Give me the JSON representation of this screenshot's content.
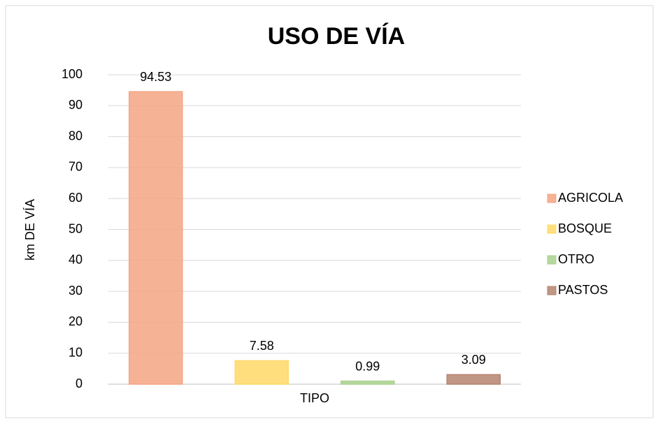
{
  "chart_data": {
    "type": "bar",
    "title": "USO DE VÍA",
    "y_label": "km DE VÍA",
    "categories": [
      "TIPO"
    ],
    "series": [
      {
        "name": "AGRICOLA",
        "color": "#f4a582",
        "values": [
          94.53
        ]
      },
      {
        "name": "BOSQUE",
        "color": "#ffd966",
        "values": [
          7.58
        ]
      },
      {
        "name": "OTRO",
        "color": "#a9d18e",
        "values": [
          0.99
        ]
      },
      {
        "name": "PASTOS",
        "color": "#b5846e",
        "values": [
          3.09
        ]
      }
    ],
    "ylim": [
      0,
      100
    ],
    "yticks": [
      0,
      10,
      20,
      30,
      40,
      50,
      60,
      70,
      80,
      90,
      100
    ],
    "grid": true,
    "legend": "right",
    "data_labels": true
  }
}
